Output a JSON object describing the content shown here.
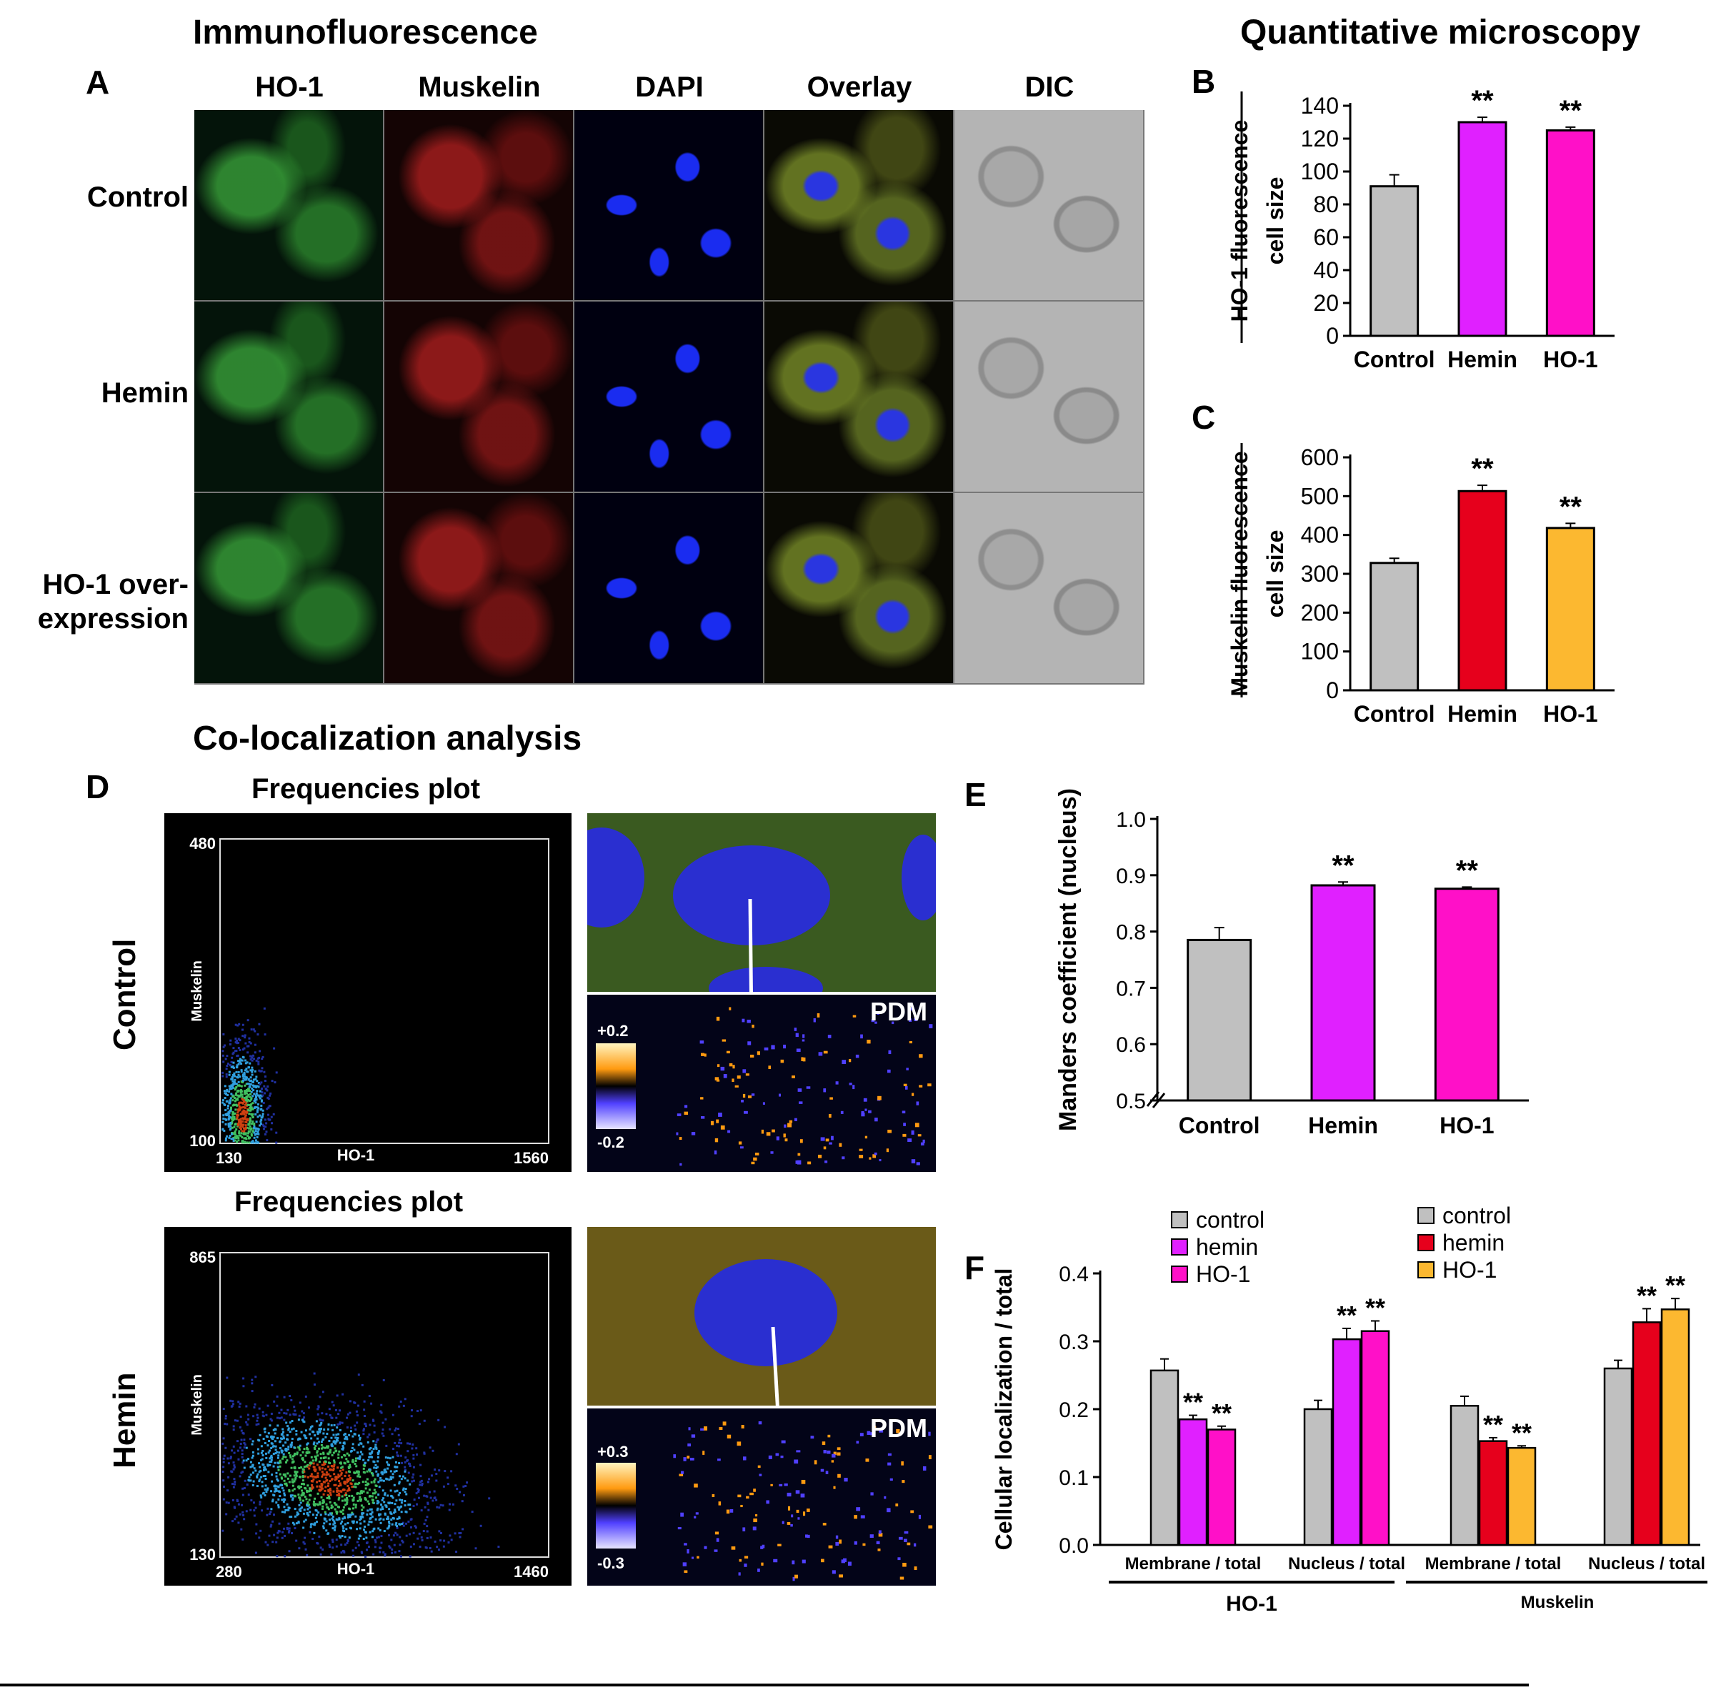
{
  "panelA": {
    "section_title": "Immunofluorescence",
    "letter": "A",
    "columns": [
      "HO-1",
      "Muskelin",
      "DAPI",
      "Overlay",
      "DIC"
    ],
    "rows": [
      "Control",
      "Hemin",
      "HO-1 over-\nexpression"
    ]
  },
  "quant": {
    "section_title": "Quantitative microscopy"
  },
  "coloc": {
    "section_title": "Co-localization analysis",
    "letter": "D",
    "plots": [
      {
        "row_label": "Control",
        "title": "Frequencies plot",
        "xlabel": "HO-1",
        "ylabel": "Muskelin",
        "x_min": "130",
        "x_max": "1560",
        "y_min": "100",
        "y_max": "480",
        "pdm_label": "PDM",
        "pdm_plus": "+0.2",
        "pdm_minus": "-0.2"
      },
      {
        "row_label": "Hemin",
        "title": "Frequencies plot",
        "xlabel": "HO-1",
        "ylabel": "Muskelin",
        "x_min": "280",
        "x_max": "1460",
        "y_min": "130",
        "y_max": "865",
        "pdm_label": "PDM",
        "pdm_plus": "+0.3",
        "pdm_minus": "-0.3"
      }
    ]
  },
  "chart_data": [
    {
      "id": "B",
      "letter": "B",
      "type": "bar",
      "categories": [
        "Control",
        "Hemin",
        "HO-1"
      ],
      "values": [
        91,
        130,
        125
      ],
      "errors": [
        7,
        3,
        2
      ],
      "significance": [
        "",
        "**",
        "**"
      ],
      "colors": [
        "#c0c0c0",
        "#e020ff",
        "#ff10c8"
      ],
      "ylabel_outer": "HO-1 fluorescence",
      "ylabel_inner": "cell size",
      "ylim": [
        0,
        140
      ],
      "yticks": [
        "0",
        "20",
        "40",
        "60",
        "80",
        "100",
        "120",
        "140"
      ]
    },
    {
      "id": "C",
      "letter": "C",
      "type": "bar",
      "categories": [
        "Control",
        "Hemin",
        "HO-1"
      ],
      "values": [
        328,
        513,
        418
      ],
      "errors": [
        12,
        15,
        12
      ],
      "significance": [
        "",
        "**",
        "**"
      ],
      "colors": [
        "#c0c0c0",
        "#e6001c",
        "#fcb830"
      ],
      "ylabel_outer": "Muskelin fluorescence",
      "ylabel_inner": "cell size",
      "ylim": [
        0,
        600
      ],
      "yticks": [
        "0",
        "100",
        "200",
        "300",
        "400",
        "500",
        "600"
      ]
    },
    {
      "id": "E",
      "letter": "E",
      "type": "bar",
      "categories": [
        "Control",
        "Hemin",
        "HO-1"
      ],
      "values": [
        0.785,
        0.882,
        0.876
      ],
      "errors": [
        0.022,
        0.006,
        0.003
      ],
      "significance": [
        "",
        "**",
        "**"
      ],
      "colors": [
        "#c0c0c0",
        "#e020ff",
        "#ff10c8"
      ],
      "ylabel": "Manders coefficient (nucleus)",
      "ylim": [
        0.5,
        1.0
      ],
      "yticks": [
        "0.5",
        "0.6",
        "0.7",
        "0.8",
        "0.9",
        "1.0"
      ],
      "axis_break": true
    },
    {
      "id": "F",
      "letter": "F",
      "type": "bar",
      "ylabel": "Cellular localization / total",
      "ylim": [
        0,
        0.4
      ],
      "yticks": [
        "0.0",
        "0.1",
        "0.2",
        "0.3",
        "0.4"
      ],
      "groups": [
        {
          "label": "Membrane / total",
          "protein": "HO-1",
          "values": [
            0.257,
            0.185,
            0.17
          ],
          "errors": [
            0.017,
            0.006,
            0.005
          ],
          "significance": [
            "",
            "**",
            "**"
          ],
          "colors": [
            "#c0c0c0",
            "#e020ff",
            "#ff10c8"
          ]
        },
        {
          "label": "Nucleus / total",
          "protein": "HO-1",
          "values": [
            0.2,
            0.303,
            0.315
          ],
          "errors": [
            0.013,
            0.016,
            0.015
          ],
          "significance": [
            "",
            "**",
            "**"
          ],
          "colors": [
            "#c0c0c0",
            "#e020ff",
            "#ff10c8"
          ]
        },
        {
          "label": "Membrane / total",
          "protein": "Muskelin",
          "values": [
            0.205,
            0.153,
            0.143
          ],
          "errors": [
            0.014,
            0.005,
            0.003
          ],
          "significance": [
            "",
            "**",
            "**"
          ],
          "colors": [
            "#c0c0c0",
            "#e6001c",
            "#fcb830"
          ]
        },
        {
          "label": "Nucleus / total",
          "protein": "Muskelin",
          "values": [
            0.26,
            0.328,
            0.347
          ],
          "errors": [
            0.012,
            0.02,
            0.016
          ],
          "significance": [
            "",
            "**",
            "**"
          ],
          "colors": [
            "#c0c0c0",
            "#e6001c",
            "#fcb830"
          ]
        }
      ],
      "proteins": [
        "HO-1",
        "Muskelin"
      ],
      "legends": [
        {
          "entries": [
            "control",
            "hemin",
            "HO-1"
          ],
          "colors": [
            "#c0c0c0",
            "#e020ff",
            "#ff10c8"
          ]
        },
        {
          "entries": [
            "control",
            "hemin",
            "HO-1"
          ],
          "colors": [
            "#c0c0c0",
            "#e6001c",
            "#fcb830"
          ]
        }
      ]
    }
  ]
}
